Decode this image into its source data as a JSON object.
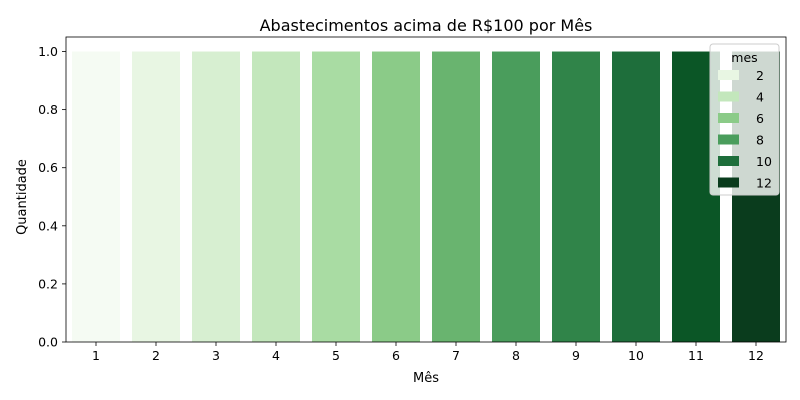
{
  "chart_data": {
    "type": "bar",
    "title": "Abastecimentos acima de R$100 por Mês",
    "xlabel": "Mês",
    "ylabel": "Quantidade",
    "categories": [
      "1",
      "2",
      "3",
      "4",
      "5",
      "6",
      "7",
      "8",
      "9",
      "10",
      "11",
      "12"
    ],
    "values": [
      1,
      1,
      1,
      1,
      1,
      1,
      1,
      1,
      1,
      1,
      1,
      1
    ],
    "ylim": [
      0,
      1.05
    ],
    "yticks": [
      "0.0",
      "0.2",
      "0.4",
      "0.6",
      "0.8",
      "1.0"
    ],
    "bar_colors": [
      "#f5fbf3",
      "#e8f6e3",
      "#d7efd1",
      "#c3e7bc",
      "#a9dca3",
      "#8bcb88",
      "#69b46f",
      "#4a9d5c",
      "#308449",
      "#1e6e3b",
      "#0b5626",
      "#0a3c1d"
    ],
    "grid": false,
    "legend": {
      "title": "mes",
      "placement": "top-right",
      "entries": [
        {
          "label": "2",
          "color": "#e8f6e3"
        },
        {
          "label": "4",
          "color": "#c3e7bc"
        },
        {
          "label": "6",
          "color": "#8bcb88"
        },
        {
          "label": "8",
          "color": "#4a9d5c"
        },
        {
          "label": "10",
          "color": "#1e6e3b"
        },
        {
          "label": "12",
          "color": "#0a3c1d"
        }
      ]
    }
  }
}
